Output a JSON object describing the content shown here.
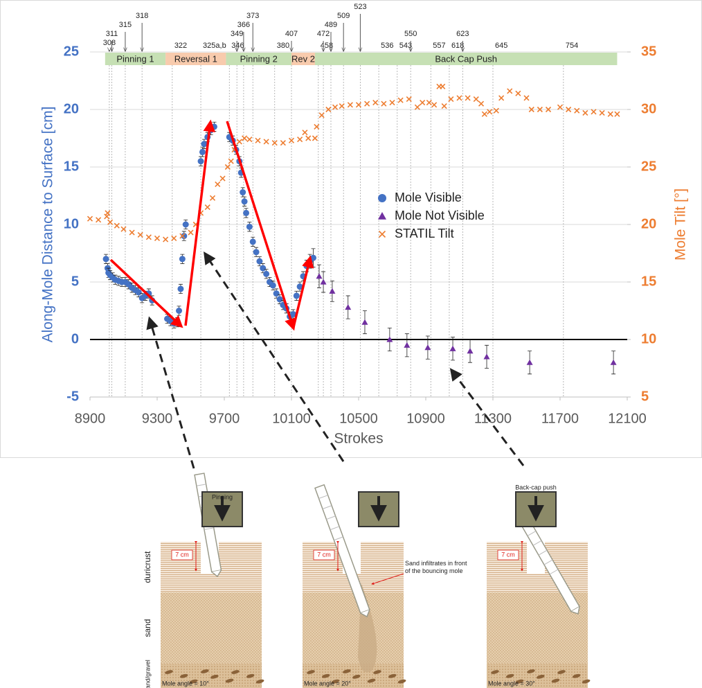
{
  "chart_data": {
    "type": "scatter",
    "x_label": "Strokes",
    "y_label": "Along-Mole Distance to Surface  [cm]",
    "y2_label": "Mole Tilt  [°]",
    "xlim": [
      8900,
      12100
    ],
    "xticks": [
      8900,
      9300,
      9700,
      10100,
      10500,
      10900,
      11300,
      11700,
      12100
    ],
    "ylim": [
      -5,
      25
    ],
    "yticks": [
      -5,
      0,
      5,
      10,
      15,
      20,
      25
    ],
    "y2lim": [
      5,
      35
    ],
    "y2ticks": [
      5,
      10,
      15,
      20,
      25,
      30,
      35
    ],
    "grid": true,
    "zero_line": true,
    "legend": "center-right",
    "phases": [
      {
        "label": "Pinning 1",
        "start": 8990,
        "end": 9350,
        "color": "#c6e0b4"
      },
      {
        "label": "Reversal 1",
        "start": 9350,
        "end": 9710,
        "color": "#f8cbad"
      },
      {
        "label": "Pinning 2",
        "start": 9710,
        "end": 10100,
        "color": "#c6e0b4"
      },
      {
        "label": "Rev 2",
        "start": 10100,
        "end": 10240,
        "color": "#f8cbad"
      },
      {
        "label": "Back Cap Push",
        "start": 10240,
        "end": 12040,
        "color": "#c6e0b4"
      }
    ],
    "sol_markers": [
      {
        "label": "308",
        "x": 9015
      },
      {
        "label": "311",
        "x": 9030
      },
      {
        "label": "315",
        "x": 9110
      },
      {
        "label": "318",
        "x": 9210
      },
      {
        "label": "322",
        "x": 9390
      },
      {
        "label": "325a,b",
        "x": 9560
      },
      {
        "label": "346",
        "x": 9730
      },
      {
        "label": "349",
        "x": 9775
      },
      {
        "label": "366",
        "x": 9815
      },
      {
        "label": "373",
        "x": 9870
      },
      {
        "label": "380",
        "x": 10000
      },
      {
        "label": "407",
        "x": 10100
      },
      {
        "label": "458",
        "x": 10260
      },
      {
        "label": "472",
        "x": 10290
      },
      {
        "label": "489",
        "x": 10335
      },
      {
        "label": "509",
        "x": 10410
      },
      {
        "label": "523",
        "x": 10510
      },
      {
        "label": "536",
        "x": 10620
      },
      {
        "label": "543",
        "x": 10730
      },
      {
        "label": "550",
        "x": 10810
      },
      {
        "label": "557",
        "x": 10930
      },
      {
        "label": "618",
        "x": 11040
      },
      {
        "label": "623",
        "x": 11120
      },
      {
        "label": "645",
        "x": 11300
      },
      {
        "label": "754",
        "x": 11720
      }
    ],
    "series": [
      {
        "name": "Mole Visible",
        "color": "#4472c4",
        "marker": "circle",
        "x": [
          8995,
          9005,
          9010,
          9020,
          9035,
          9050,
          9070,
          9090,
          9110,
          9130,
          9150,
          9170,
          9190,
          9210,
          9230,
          9250,
          9270,
          9360,
          9380,
          9400,
          9420,
          9430,
          9440,
          9450,
          9460,
          9470,
          9560,
          9570,
          9580,
          9600,
          9620,
          9640,
          9730,
          9750,
          9770,
          9790,
          9800,
          9810,
          9820,
          9830,
          9850,
          9870,
          9890,
          9910,
          9930,
          9950,
          9970,
          9990,
          10010,
          10030,
          10050,
          10070,
          10090,
          10110,
          10130,
          10150,
          10170,
          10190,
          10210,
          10230
        ],
        "values": [
          7.0,
          6.2,
          5.8,
          5.6,
          5.4,
          5.2,
          5.1,
          5.0,
          5.0,
          4.8,
          4.5,
          4.3,
          4.1,
          3.6,
          3.8,
          4.0,
          3.4,
          1.8,
          1.6,
          1.4,
          1.5,
          2.5,
          4.4,
          7.0,
          9.0,
          10.0,
          15.5,
          16.3,
          17.0,
          17.6,
          18.2,
          18.5,
          17.6,
          17.3,
          16.5,
          15.5,
          14.5,
          12.8,
          12.0,
          11.0,
          9.8,
          8.5,
          7.6,
          6.8,
          6.2,
          5.7,
          5.0,
          4.7,
          4.0,
          3.5,
          3.0,
          2.7,
          2.0,
          2.2,
          3.8,
          4.6,
          5.5,
          6.4,
          6.8,
          7.1
        ],
        "errors": [
          0.4,
          0.4,
          0.4,
          0.4,
          0.4,
          0.4,
          0.4,
          0.4,
          0.4,
          0.4,
          0.4,
          0.4,
          0.4,
          0.4,
          0.4,
          0.4,
          0.4,
          0.4,
          0.4,
          0.4,
          0.4,
          0.4,
          0.4,
          0.4,
          0.4,
          0.4,
          0.4,
          0.4,
          0.4,
          0.4,
          0.4,
          0.4,
          0.4,
          0.4,
          0.4,
          0.4,
          0.4,
          0.4,
          0.4,
          0.4,
          0.4,
          0.4,
          0.4,
          0.4,
          0.4,
          0.4,
          0.4,
          0.4,
          0.4,
          0.4,
          0.4,
          0.4,
          0.4,
          0.4,
          0.4,
          0.4,
          0.4,
          0.5,
          0.6,
          0.8
        ]
      },
      {
        "name": "Mole Not Visible",
        "color": "#7030a0",
        "marker": "triangle",
        "x": [
          10265,
          10290,
          10343,
          10437,
          10537,
          10685,
          10788,
          10912,
          11061,
          11164,
          11263,
          11519,
          12018
        ],
        "values": [
          5.5,
          5.0,
          4.2,
          2.8,
          1.5,
          0.0,
          -0.5,
          -0.7,
          -0.8,
          -1.0,
          -1.5,
          -2.0,
          -2.0
        ],
        "errors": [
          1.0,
          0.9,
          0.9,
          1.0,
          1.0,
          1.0,
          1.0,
          1.0,
          1.0,
          1.0,
          1.0,
          1.0,
          1.0
        ]
      },
      {
        "name": "STATIL Tilt",
        "color": "#ed7d31",
        "marker": "x",
        "axis": "y2",
        "x": [
          8900,
          8950,
          9000,
          9005,
          9020,
          9060,
          9100,
          9150,
          9200,
          9250,
          9300,
          9350,
          9400,
          9450,
          9500,
          9530,
          9560,
          9600,
          9630,
          9660,
          9690,
          9720,
          9740,
          9760,
          9790,
          9820,
          9850,
          9900,
          9950,
          10000,
          10050,
          10100,
          10150,
          10180,
          10200,
          10240,
          10250,
          10280,
          10320,
          10360,
          10400,
          10450,
          10500,
          10550,
          10600,
          10650,
          10700,
          10750,
          10800,
          10850,
          10880,
          10920,
          10950,
          10980,
          11000,
          11010,
          11050,
          11100,
          11150,
          11200,
          11230,
          11250,
          11280,
          11320,
          11350,
          11400,
          11450,
          11500,
          11530,
          11580,
          11630,
          11700,
          11750,
          11800,
          11850,
          11900,
          11950,
          12000,
          12040
        ],
        "values": [
          20.5,
          20.4,
          20.7,
          21.0,
          20.2,
          19.9,
          19.6,
          19.3,
          19.1,
          18.9,
          18.8,
          18.7,
          18.8,
          19.0,
          19.3,
          20.0,
          21.0,
          21.5,
          22.3,
          23.5,
          24.0,
          25.0,
          25.5,
          26.5,
          27.2,
          27.5,
          27.4,
          27.3,
          27.2,
          27.1,
          27.1,
          27.3,
          27.4,
          28.0,
          27.5,
          27.5,
          28.5,
          29.5,
          30.0,
          30.2,
          30.3,
          30.4,
          30.4,
          30.5,
          30.6,
          30.5,
          30.6,
          30.8,
          30.9,
          30.2,
          30.6,
          30.6,
          30.4,
          32.0,
          32.0,
          30.3,
          30.9,
          31.0,
          31.0,
          30.9,
          30.5,
          29.6,
          29.8,
          29.9,
          31.0,
          31.6,
          31.4,
          31.0,
          30.0,
          30.0,
          30.0,
          30.2,
          30.0,
          29.9,
          29.7,
          29.8,
          29.7,
          29.6,
          29.6
        ]
      }
    ]
  },
  "diagrams": {
    "layers": [
      "duricrust",
      "sand",
      "sand/gravel"
    ],
    "depth_label": "7 cm",
    "annotation": "Sand infiltrates in front of the bouncing mole",
    "panels": [
      {
        "title": "Pinning",
        "angle": 10,
        "angle_label": "Mole angle = 10°"
      },
      {
        "angle": 20,
        "angle_label": "Mole angle = 20°"
      },
      {
        "title": "Back-cap push",
        "angle": 30,
        "angle_label": "Mole angle = 30°"
      }
    ]
  }
}
